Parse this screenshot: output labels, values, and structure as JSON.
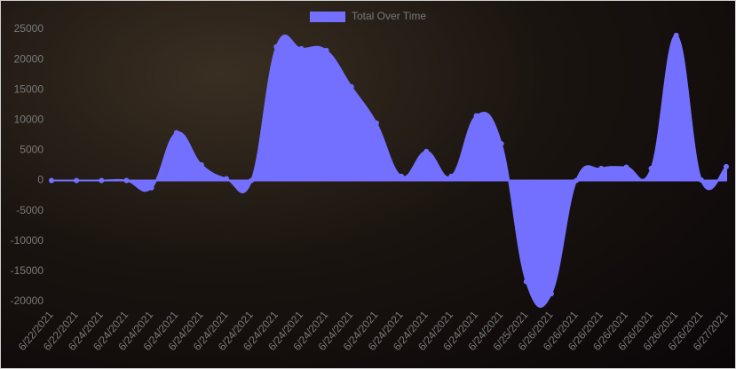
{
  "chart_data": {
    "type": "line",
    "categories": [
      "6/22/2021",
      "6/22/2021",
      "6/24/2021",
      "6/24/2021",
      "6/24/2021",
      "6/24/2021",
      "6/24/2021",
      "6/24/2021",
      "6/24/2021",
      "6/24/2021",
      "6/24/2021",
      "6/24/2021",
      "6/24/2021",
      "6/24/2021",
      "6/24/2021",
      "6/24/2021",
      "6/24/2021",
      "6/24/2021",
      "6/24/2021",
      "6/25/2021",
      "6/26/2021",
      "6/26/2021",
      "6/26/2021",
      "6/26/2021",
      "6/26/2021",
      "6/26/2021",
      "6/26/2021",
      "6/27/2021"
    ],
    "series": [
      {
        "name": "Total Over Time",
        "color": "#7470ff",
        "values": [
          0,
          0,
          0,
          0,
          -1200,
          7900,
          2600,
          300,
          0,
          22100,
          21800,
          21500,
          15500,
          9500,
          700,
          4800,
          700,
          10700,
          6100,
          -16700,
          -18700,
          0,
          2000,
          2200,
          2000,
          24000,
          100,
          2300
        ]
      }
    ],
    "ylim": [
      -20000,
      25000
    ],
    "yticks": [
      -20000,
      -15000,
      -10000,
      -5000,
      0,
      5000,
      10000,
      15000,
      20000,
      25000
    ],
    "fill": true,
    "legend": "top"
  }
}
